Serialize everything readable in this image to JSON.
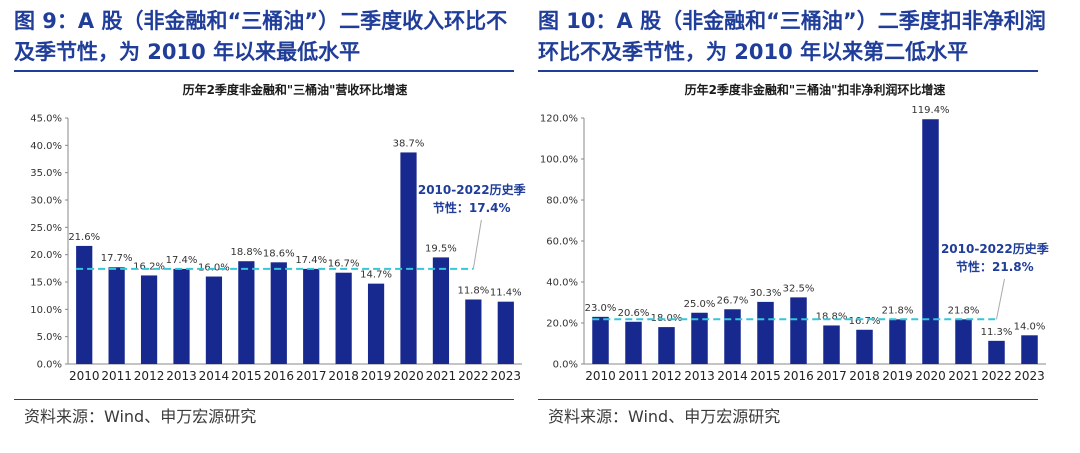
{
  "colors": {
    "bar": "#17288f",
    "title": "#1f3d99",
    "avg_line": "#33c7d9"
  },
  "left": {
    "fig_title_line1": "图 9：A 股（非金融和“三桶油”）二季度收入环比不",
    "fig_title_line2": "及季节性，为 2010 年以来最低水平",
    "source": "资料来源：Wind、申万宏源研究"
  },
  "right": {
    "fig_title_line1": "图 10：A 股（非金融和“三桶油”）二季度扣非净利润",
    "fig_title_line2": "环比不及季节性，为 2010 年以来第二低水平",
    "source": "资料来源：Wind、申万宏源研究"
  },
  "chart_data": [
    {
      "type": "bar",
      "title": "历年2季度非金融和\"三桶油\"营收环比增速",
      "categories": [
        "2010",
        "2011",
        "2012",
        "2013",
        "2014",
        "2015",
        "2016",
        "2017",
        "2018",
        "2019",
        "2020",
        "2021",
        "2022",
        "2023"
      ],
      "values": [
        21.6,
        17.7,
        16.2,
        17.4,
        16.0,
        18.8,
        18.6,
        17.4,
        16.7,
        14.7,
        38.7,
        19.5,
        11.8,
        11.4
      ],
      "data_labels": [
        "21.6%",
        "17.7%",
        "16.2%",
        "17.4%",
        "16.0%",
        "18.8%",
        "18.6%",
        "17.4%",
        "16.7%",
        "14.7%",
        "38.7%",
        "19.5%",
        "11.8%",
        "11.4%"
      ],
      "ylim": [
        0,
        45
      ],
      "yticks": [
        0,
        5,
        10,
        15,
        20,
        25,
        30,
        35,
        40,
        45
      ],
      "ytick_labels": [
        "0.0%",
        "5.0%",
        "10.0%",
        "15.0%",
        "20.0%",
        "25.0%",
        "30.0%",
        "35.0%",
        "40.0%",
        "45.0%"
      ],
      "average": 17.4,
      "annotation_line1": "2010-2022历史季",
      "annotation_line2": "节性：17.4%",
      "xlabel": "",
      "ylabel": ""
    },
    {
      "type": "bar",
      "title": "历年2季度非金融和\"三桶油\"扣非净利润环比增速",
      "categories": [
        "2010",
        "2011",
        "2012",
        "2013",
        "2014",
        "2015",
        "2016",
        "2017",
        "2018",
        "2019",
        "2020",
        "2021",
        "2022",
        "2023"
      ],
      "values": [
        23.0,
        20.6,
        18.0,
        25.0,
        26.7,
        30.3,
        32.5,
        18.8,
        16.7,
        21.8,
        119.4,
        21.8,
        11.3,
        14.0
      ],
      "data_labels": [
        "23.0%",
        "20.6%",
        "18.0%",
        "25.0%",
        "26.7%",
        "30.3%",
        "32.5%",
        "18.8%",
        "16.7%",
        "21.8%",
        "119.4%",
        "21.8%",
        "11.3%",
        "14.0%"
      ],
      "ylim": [
        0,
        120
      ],
      "yticks": [
        0,
        20,
        40,
        60,
        80,
        100,
        120
      ],
      "ytick_labels": [
        "0.0%",
        "20.0%",
        "40.0%",
        "60.0%",
        "80.0%",
        "100.0%",
        "120.0%"
      ],
      "average": 21.8,
      "annotation_line1": "2010-2022历史季",
      "annotation_line2": "节性：21.8%",
      "xlabel": "",
      "ylabel": ""
    }
  ]
}
